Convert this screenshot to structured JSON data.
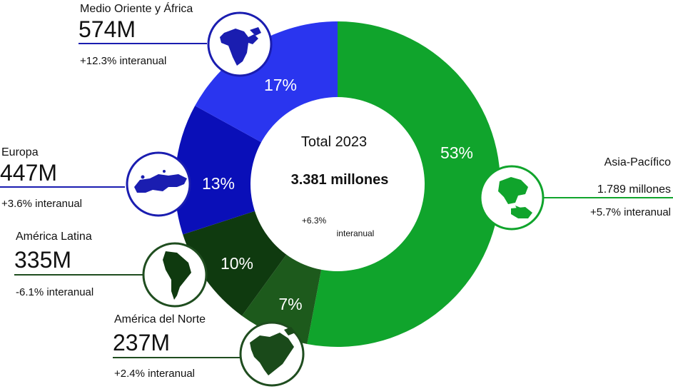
{
  "chart_data": {
    "type": "pie",
    "center": {
      "title": "Total 2023",
      "total": "3.381 millones",
      "change_line1": "+6.3%",
      "change_line2": "interanual"
    },
    "slices": [
      {
        "id": "asia",
        "name": "Asia-Pacífico",
        "share": 53,
        "pct_label": "53%",
        "value_label": "1.789 millones",
        "change": "+5.7% interanual",
        "color": "#10a42c",
        "line_color": "#10a42c",
        "icon": "asia-pacific-map-icon"
      },
      {
        "id": "na",
        "name": "América del Norte",
        "share": 7,
        "pct_label": "7%",
        "value_label": "237M",
        "change": "+2.4% interanual",
        "color": "#1d5a1c",
        "line_color": "#1f4d1f",
        "icon": "north-america-map-icon"
      },
      {
        "id": "la",
        "name": "América Latina",
        "share": 10,
        "pct_label": "10%",
        "value_label": "335M",
        "change": "-6.1% interanual",
        "color": "#0f3a0f",
        "line_color": "#1f4d1f",
        "icon": "south-america-map-icon"
      },
      {
        "id": "eu",
        "name": "Europa",
        "share": 13,
        "pct_label": "13%",
        "value_label": "447M",
        "change": "+3.6% interanual",
        "color": "#0a0fb8",
        "line_color": "#1a1db0",
        "icon": "europe-map-icon"
      },
      {
        "id": "mea",
        "name": "Medio Oriente y África",
        "share": 17,
        "pct_label": "17%",
        "value_label": "574M",
        "change": "+12.3% interanual",
        "color": "#2a35ef",
        "line_color": "#1a1db0",
        "icon": "middle-east-africa-map-icon"
      }
    ]
  }
}
